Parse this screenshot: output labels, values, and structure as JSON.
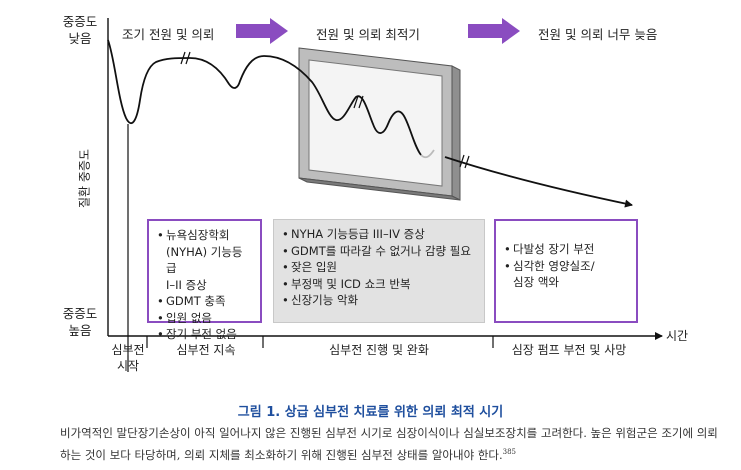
{
  "y_axis": {
    "top_label": [
      "중증도",
      "낮음"
    ],
    "bottom_label": [
      "중증도",
      "높음"
    ],
    "vertical_label": "질환 중증도"
  },
  "phases": {
    "early": "조기 전원 및 의뢰",
    "optimal": "전원 및 의뢰 최적기",
    "late": "전원 및 의뢰 너무 늦음"
  },
  "arrow_color": "#8a4cc0",
  "boxes": {
    "box1": [
      "뉴욕심장학회\n(NYHA) 기능등급\nI–II 증상",
      "GDMT 충족",
      "입원 없음",
      "장기 부전 없음"
    ],
    "box2": [
      "NYHA 기능등급 III–IV 증상",
      "GDMT를 따라갈 수 없거나 감량 필요",
      "잦은 입원",
      "부정맥 및 ICD 쇼크 반복",
      "신장기능 악화"
    ],
    "box3": [
      "다발성 장기 부전",
      "심각한 영양실조/\n심장 액와"
    ]
  },
  "x_axis": {
    "label": "시간",
    "stages": [
      [
        "심부전",
        "시작"
      ],
      [
        "심부전 지속"
      ],
      [
        "심부전 진행 및 완화"
      ],
      [
        "심장 펌프 부전 및 사망"
      ]
    ]
  },
  "figure_title": "그림 1. 상급 심부전 치료를 위한 의뢰 최적 시기",
  "caption": {
    "text": "비가역적인 말단장기손상이 아직 일어나지 않은 진행된 심부전 시기로 심장이식이나 심실보조장치를 고려한다. 높은 위험군은 조기에 의뢰하는 것이 보다 타당하며, 의뢰 지체를 최소화하기 위해 진행된 심부전 상태를 알아내야 한다.",
    "ref": "385"
  }
}
